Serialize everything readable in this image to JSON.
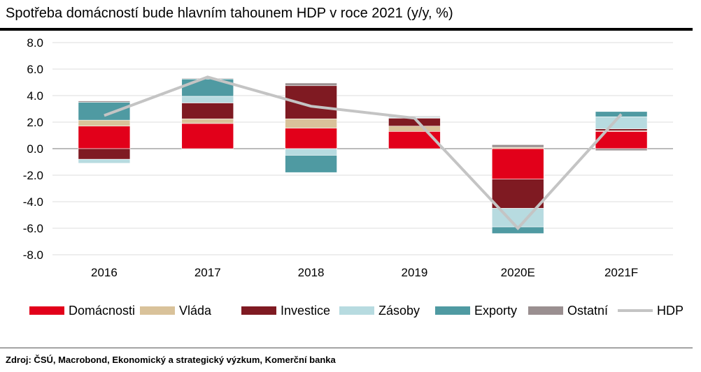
{
  "title": "Spotřeba domácností bude hlavním tahounem HDP v roce 2021 (y/y, %)",
  "source": "Zdroj: ČSÚ, Macrobond, Ekonomický a strategický výzkum, Komerční banka",
  "chart_data": {
    "type": "bar",
    "stacked": true,
    "categories": [
      "2016",
      "2017",
      "2018",
      "2019",
      "2020E",
      "2021F"
    ],
    "ylim": [
      -8.0,
      8.0
    ],
    "yticks": [
      "8.0",
      "6.0",
      "4.0",
      "2.0",
      "0.0",
      "-2.0",
      "-4.0",
      "-6.0",
      "-8.0"
    ],
    "grid": true,
    "legend_position": "bottom",
    "series": [
      {
        "name": "Domácnosti",
        "color": "#e2001a",
        "values": [
          1.7,
          1.9,
          1.55,
          1.3,
          -2.3,
          1.3
        ]
      },
      {
        "name": "Vláda",
        "color": "#d9c29a",
        "values": [
          0.45,
          0.35,
          0.7,
          0.4,
          0.1,
          0.05
        ]
      },
      {
        "name": "Investice",
        "color": "#7f1a22",
        "values": [
          -0.8,
          1.2,
          2.5,
          0.6,
          -2.2,
          0.15
        ]
      },
      {
        "name": "Zásoby",
        "color": "#b7dbe0",
        "values": [
          -0.3,
          0.5,
          -0.5,
          0.05,
          -1.4,
          0.9
        ]
      },
      {
        "name": "Exporty",
        "color": "#4f9aa2",
        "values": [
          1.35,
          1.3,
          -1.3,
          0.05,
          -0.5,
          0.4
        ]
      },
      {
        "name": "Ostatní",
        "color": "#9a8f90",
        "values": [
          0.1,
          0.05,
          0.2,
          0.05,
          0.2,
          -0.15
        ]
      }
    ],
    "line": {
      "name": "HDP",
      "color": "#c4c4c4",
      "values": [
        2.5,
        5.4,
        3.2,
        2.3,
        -6.0,
        2.6
      ]
    }
  }
}
